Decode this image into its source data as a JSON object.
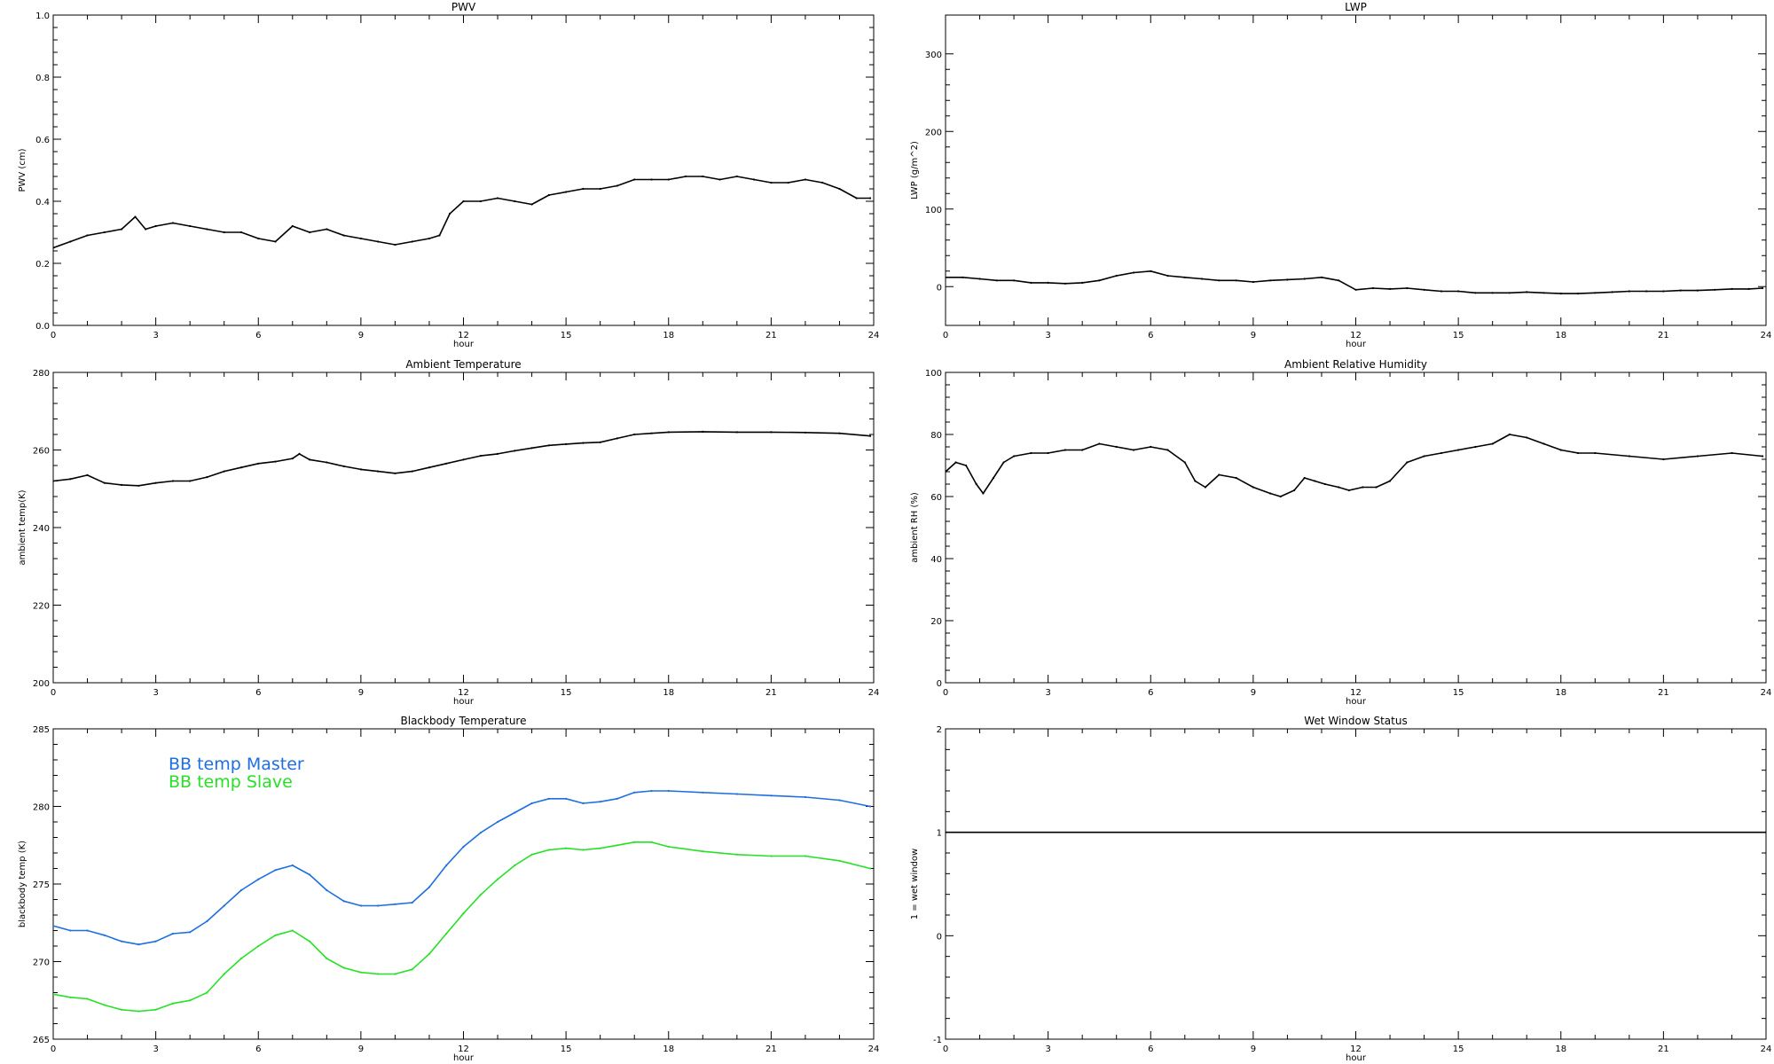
{
  "chart_data": [
    {
      "type": "line",
      "title": "PWV",
      "xlabel": "hour",
      "ylabel": "PWV (cm)",
      "xlim": [
        0,
        24
      ],
      "ylim": [
        0,
        1.0
      ],
      "xticks": [
        0,
        3,
        6,
        9,
        12,
        15,
        18,
        21,
        24
      ],
      "yticks": [
        "0.0",
        "0.2",
        "0.4",
        "0.6",
        "0.8",
        "1.0"
      ],
      "grid": false,
      "series": [
        {
          "color": "#000000",
          "x": [
            0,
            0.5,
            1,
            1.5,
            2,
            2.4,
            2.7,
            3,
            3.5,
            4,
            4.5,
            5,
            5.5,
            6,
            6.5,
            7,
            7.5,
            8,
            8.5,
            9,
            9.5,
            10,
            10.5,
            11,
            11.3,
            11.6,
            12,
            12.5,
            13,
            13.5,
            14,
            14.5,
            15,
            15.5,
            16,
            16.5,
            17,
            17.5,
            18,
            18.5,
            19,
            19.5,
            20,
            20.5,
            21,
            21.5,
            22,
            22.5,
            23,
            23.5,
            23.9
          ],
          "values": [
            0.25,
            0.27,
            0.29,
            0.3,
            0.31,
            0.35,
            0.31,
            0.32,
            0.33,
            0.32,
            0.31,
            0.3,
            0.3,
            0.28,
            0.27,
            0.32,
            0.3,
            0.31,
            0.29,
            0.28,
            0.27,
            0.26,
            0.27,
            0.28,
            0.29,
            0.36,
            0.4,
            0.4,
            0.41,
            0.4,
            0.39,
            0.42,
            0.43,
            0.44,
            0.44,
            0.45,
            0.47,
            0.47,
            0.47,
            0.48,
            0.48,
            0.47,
            0.48,
            0.47,
            0.46,
            0.46,
            0.47,
            0.46,
            0.44,
            0.41,
            0.41
          ]
        }
      ]
    },
    {
      "type": "line",
      "title": "LWP",
      "xlabel": "hour",
      "ylabel": "LWP (g/m^2)",
      "xlim": [
        0,
        24
      ],
      "ylim": [
        -50,
        350
      ],
      "xticks": [
        0,
        3,
        6,
        9,
        12,
        15,
        18,
        21,
        24
      ],
      "yticks": [
        "0",
        "100",
        "200",
        "300"
      ],
      "grid": false,
      "series": [
        {
          "color": "#000000",
          "x": [
            0,
            0.5,
            1,
            1.5,
            2,
            2.5,
            3,
            3.5,
            4,
            4.5,
            5,
            5.5,
            6,
            6.5,
            7,
            7.5,
            8,
            8.5,
            9,
            9.5,
            10,
            10.5,
            11,
            11.5,
            12,
            12.5,
            13,
            13.5,
            14,
            14.5,
            15,
            15.5,
            16,
            16.5,
            17,
            17.5,
            18,
            18.5,
            19,
            19.5,
            20,
            20.5,
            21,
            21.5,
            22,
            22.5,
            23,
            23.5,
            23.9
          ],
          "values": [
            12,
            12,
            10,
            8,
            8,
            5,
            5,
            4,
            5,
            8,
            14,
            18,
            20,
            14,
            12,
            10,
            8,
            8,
            6,
            8,
            9,
            10,
            12,
            8,
            -4,
            -2,
            -3,
            -2,
            -4,
            -6,
            -6,
            -8,
            -8,
            -8,
            -7,
            -8,
            -9,
            -9,
            -8,
            -7,
            -6,
            -6,
            -6,
            -5,
            -5,
            -4,
            -3,
            -3,
            -2
          ]
        }
      ]
    },
    {
      "type": "line",
      "title": "Ambient Temperature",
      "xlabel": "hour",
      "ylabel": "ambient temp(K)",
      "xlim": [
        0,
        24
      ],
      "ylim": [
        200,
        280
      ],
      "xticks": [
        0,
        3,
        6,
        9,
        12,
        15,
        18,
        21,
        24
      ],
      "yticks": [
        "200",
        "220",
        "240",
        "260",
        "280"
      ],
      "grid": false,
      "series": [
        {
          "color": "#000000",
          "x": [
            0,
            0.5,
            1,
            1.5,
            2,
            2.5,
            3,
            3.5,
            4,
            4.5,
            5,
            5.5,
            6,
            6.5,
            7,
            7.2,
            7.5,
            8,
            8.5,
            9,
            9.5,
            10,
            10.5,
            11,
            11.5,
            12,
            12.5,
            13,
            13.5,
            14,
            14.5,
            15,
            15.5,
            16,
            16.5,
            17,
            17.5,
            18,
            19,
            20,
            21,
            22,
            23,
            23.9
          ],
          "values": [
            252,
            252.5,
            253.5,
            251.5,
            251,
            250.8,
            251.5,
            252,
            252,
            253,
            254.5,
            255.5,
            256.5,
            257,
            257.8,
            259,
            257.5,
            256.8,
            255.8,
            255,
            254.5,
            254,
            254.5,
            255.5,
            256.5,
            257.5,
            258.5,
            259,
            259.8,
            260.5,
            261.2,
            261.5,
            261.8,
            262,
            263,
            264,
            264.3,
            264.6,
            264.7,
            264.6,
            264.6,
            264.5,
            264.3,
            263.6
          ]
        }
      ]
    },
    {
      "type": "line",
      "title": "Ambient Relative Humidity",
      "xlabel": "hour",
      "ylabel": "ambient RH (%)",
      "xlim": [
        0,
        24
      ],
      "ylim": [
        0,
        100
      ],
      "xticks": [
        0,
        3,
        6,
        9,
        12,
        15,
        18,
        21,
        24
      ],
      "yticks": [
        "0",
        "20",
        "40",
        "60",
        "80",
        "100"
      ],
      "grid": false,
      "series": [
        {
          "color": "#000000",
          "x": [
            0,
            0.3,
            0.6,
            0.9,
            1.1,
            1.4,
            1.7,
            2,
            2.5,
            3,
            3.5,
            4,
            4.5,
            5,
            5.5,
            6,
            6.5,
            7,
            7.3,
            7.6,
            8,
            8.5,
            9,
            9.5,
            9.8,
            10.2,
            10.5,
            10.8,
            11.1,
            11.5,
            11.8,
            12.2,
            12.6,
            13,
            13.5,
            14,
            14.5,
            15,
            15.5,
            16,
            16.5,
            17,
            17.5,
            18,
            18.5,
            19,
            20,
            21,
            22,
            23,
            23.9
          ],
          "values": [
            68,
            71,
            70,
            64,
            61,
            66,
            71,
            73,
            74,
            74,
            75,
            75,
            77,
            76,
            75,
            76,
            75,
            71,
            65,
            63,
            67,
            66,
            63,
            61,
            60,
            62,
            66,
            65,
            64,
            63,
            62,
            63,
            63,
            65,
            71,
            73,
            74,
            75,
            76,
            77,
            80,
            79,
            77,
            75,
            74,
            74,
            73,
            72,
            73,
            74,
            73
          ]
        }
      ]
    },
    {
      "type": "line",
      "title": "Blackbody Temperature",
      "xlabel": "hour",
      "ylabel": "blackbody temp (K)",
      "xlim": [
        0,
        24
      ],
      "ylim": [
        265,
        285
      ],
      "xticks": [
        0,
        3,
        6,
        9,
        12,
        15,
        18,
        21,
        24
      ],
      "yticks": [
        "265",
        "270",
        "275",
        "280",
        "285"
      ],
      "grid": false,
      "legend": "top-left",
      "series": [
        {
          "name": "BB temp Master",
          "color": "#1f6fe0",
          "x": [
            0,
            0.5,
            1,
            1.5,
            2,
            2.5,
            3,
            3.5,
            4,
            4.5,
            5,
            5.5,
            6,
            6.5,
            7,
            7.5,
            8,
            8.5,
            9,
            9.5,
            10,
            10.5,
            11,
            11.5,
            12,
            12.5,
            13,
            13.5,
            14,
            14.5,
            15,
            15.5,
            16,
            16.5,
            17,
            17.5,
            18,
            19,
            20,
            21,
            22,
            23,
            23.9
          ],
          "values": [
            272.3,
            272.0,
            272.0,
            271.7,
            271.3,
            271.1,
            271.3,
            271.8,
            271.9,
            272.6,
            273.6,
            274.6,
            275.3,
            275.9,
            276.2,
            275.6,
            274.6,
            273.9,
            273.6,
            273.6,
            273.7,
            273.8,
            274.8,
            276.2,
            277.4,
            278.3,
            279.0,
            279.6,
            280.2,
            280.5,
            280.5,
            280.2,
            280.3,
            280.5,
            280.9,
            281.0,
            281.0,
            280.9,
            280.8,
            280.7,
            280.6,
            280.4,
            280.0
          ]
        },
        {
          "name": "BB temp Slave",
          "color": "#28e028",
          "x": [
            0,
            0.5,
            1,
            1.5,
            2,
            2.5,
            3,
            3.5,
            4,
            4.5,
            5,
            5.5,
            6,
            6.5,
            7,
            7.5,
            8,
            8.5,
            9,
            9.5,
            10,
            10.5,
            11,
            11.5,
            12,
            12.5,
            13,
            13.5,
            14,
            14.5,
            15,
            15.5,
            16,
            16.5,
            17,
            17.5,
            18,
            19,
            20,
            21,
            22,
            23,
            23.9
          ],
          "values": [
            267.9,
            267.7,
            267.6,
            267.2,
            266.9,
            266.8,
            266.9,
            267.3,
            267.5,
            268.0,
            269.2,
            270.2,
            271.0,
            271.7,
            272.0,
            271.3,
            270.2,
            269.6,
            269.3,
            269.2,
            269.2,
            269.5,
            270.5,
            271.8,
            273.1,
            274.3,
            275.3,
            276.2,
            276.9,
            277.2,
            277.3,
            277.2,
            277.3,
            277.5,
            277.7,
            277.7,
            277.4,
            277.1,
            276.9,
            276.8,
            276.8,
            276.5,
            276.0
          ]
        }
      ]
    },
    {
      "type": "line",
      "title": "Wet Window Status",
      "xlabel": "hour",
      "ylabel": "1 = wet window",
      "xlim": [
        0,
        24
      ],
      "ylim": [
        -1,
        2
      ],
      "xticks": [
        0,
        3,
        6,
        9,
        12,
        15,
        18,
        21,
        24
      ],
      "yticks": [
        "-1",
        "0",
        "1",
        "2"
      ],
      "grid": false,
      "series": [
        {
          "color": "#000000",
          "x": [
            0,
            24
          ],
          "values": [
            1,
            1
          ]
        }
      ]
    }
  ]
}
